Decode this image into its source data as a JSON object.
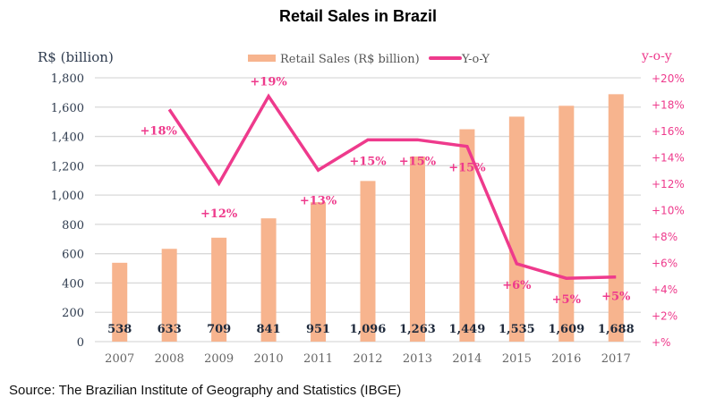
{
  "chart_data": {
    "type": "bar+line",
    "title": "Retail Sales in Brazil",
    "categories": [
      "2007",
      "2008",
      "2009",
      "2010",
      "2011",
      "2012",
      "2013",
      "2014",
      "2015",
      "2016",
      "2017"
    ],
    "series": [
      {
        "name": "Retail Sales (R$ billion)",
        "type": "bar",
        "axis": "left",
        "values": [
          538,
          633,
          709,
          841,
          951,
          1096,
          1263,
          1449,
          1535,
          1609,
          1688
        ],
        "data_labels": [
          "538",
          "633",
          "709",
          "841",
          "951",
          "1,096",
          "1,263",
          "1,449",
          "1,535",
          "1,609",
          "1,688"
        ],
        "color": "#F7B48E"
      },
      {
        "name": "Y-o-Y",
        "type": "line",
        "axis": "right",
        "values": [
          null,
          17.6,
          12.0,
          18.6,
          13.0,
          15.3,
          15.3,
          14.8,
          5.9,
          4.8,
          4.9
        ],
        "data_labels": [
          "",
          "+18%",
          "+12%",
          "+19%",
          "+13%",
          "+15%",
          "+15%",
          "+15%",
          "+6%",
          "+5%",
          "+5%"
        ],
        "color": "#EE3A8C"
      }
    ],
    "left_axis": {
      "label": "R$ (billion)",
      "range": [
        0,
        1800
      ],
      "ticks": [
        0,
        200,
        400,
        600,
        800,
        1000,
        1200,
        1400,
        1600,
        1800
      ],
      "tick_labels": [
        "0",
        "200",
        "400",
        "600",
        "800",
        "1,000",
        "1,200",
        "1,400",
        "1,600",
        "1,800"
      ]
    },
    "right_axis": {
      "label": "y-o-y",
      "range": [
        0,
        20
      ],
      "ticks": [
        0,
        2,
        4,
        6,
        8,
        10,
        12,
        14,
        16,
        18,
        20
      ],
      "tick_labels": [
        "+%",
        "+2%",
        "+4%",
        "+6%",
        "+8%",
        "+10%",
        "+12%",
        "+14%",
        "+16%",
        "+18%",
        "+20%"
      ]
    },
    "grid": true,
    "legend": {
      "position": "top-center",
      "entries": [
        "Retail Sales (R$ billion)",
        "Y-o-Y"
      ]
    },
    "colors": {
      "bar": "#F7B48E",
      "line": "#EE3A8C",
      "right_axis_text": "#EE3A8C",
      "left_axis_text": "#2E3B4E",
      "bar_label_text": "#1F2A3C",
      "x_axis_text": "#666666",
      "grid": "#D9D9D9"
    }
  },
  "source": "Source: The Brazilian Institute of Geography and Statistics (IBGE)"
}
